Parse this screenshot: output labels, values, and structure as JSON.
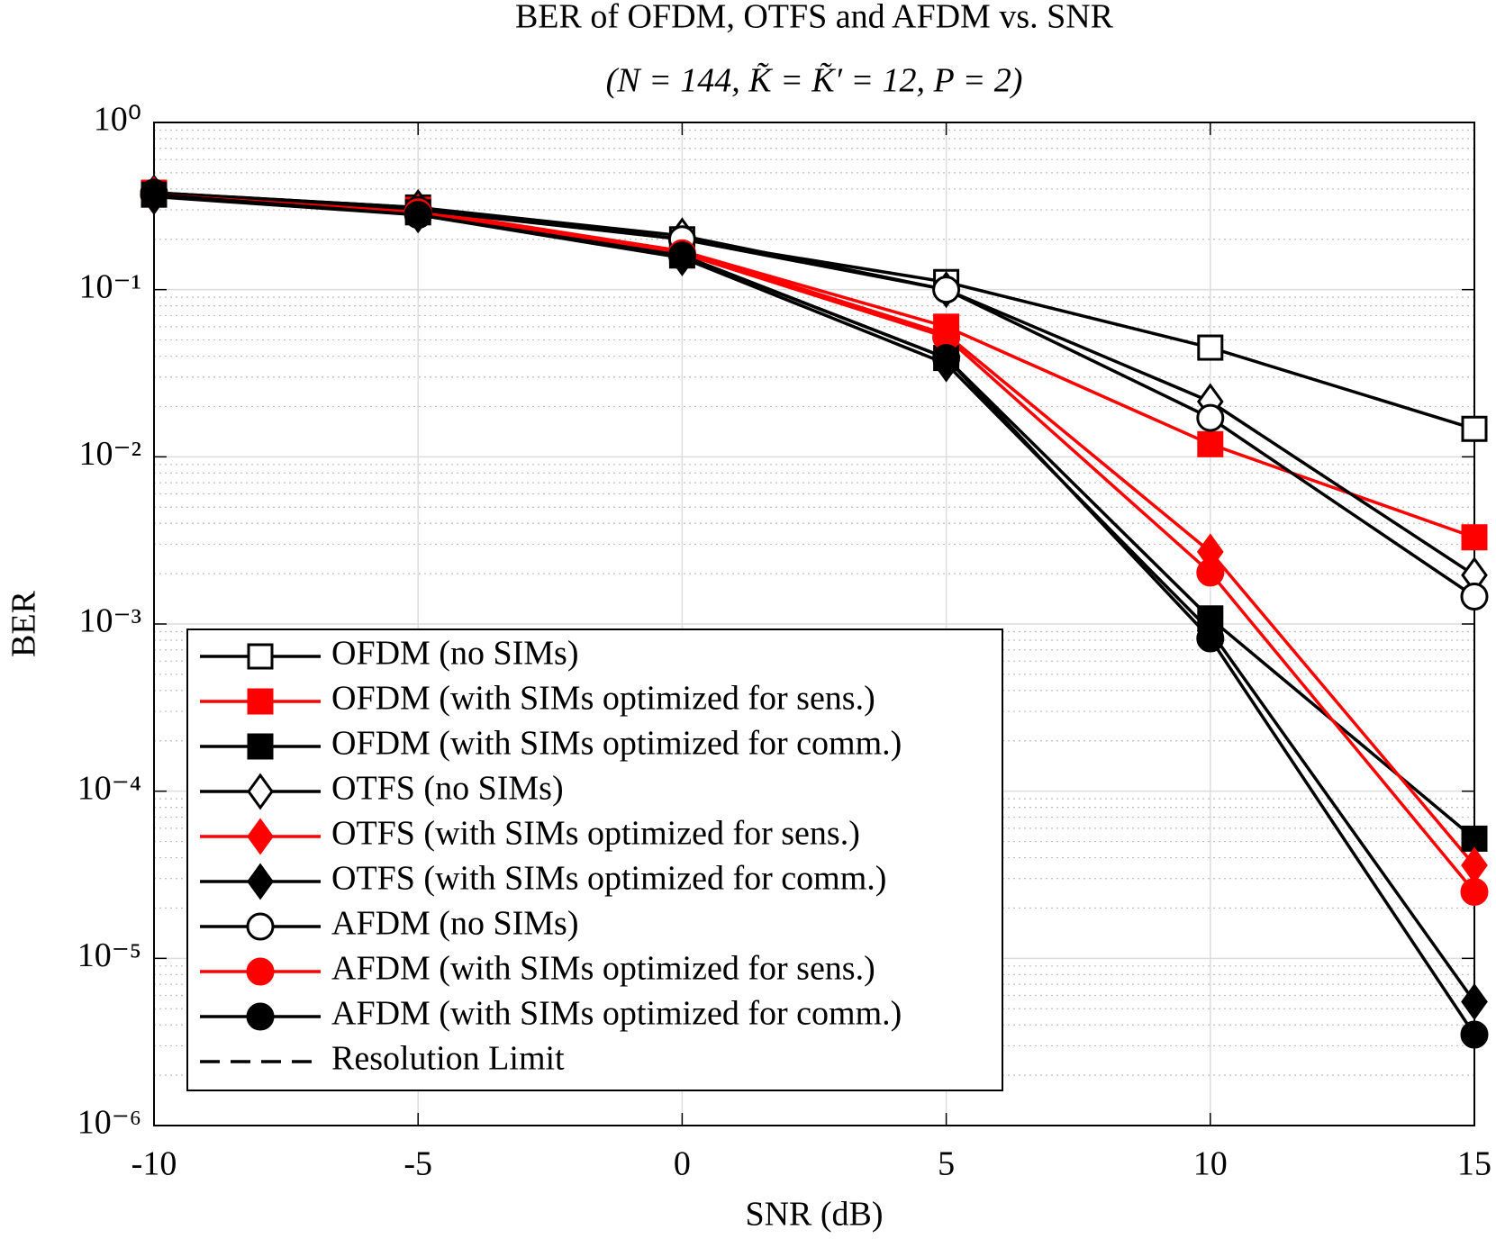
{
  "chart_data": {
    "type": "line",
    "title": "BER of OFDM, OTFS and AFDM vs. SNR",
    "subtitle": "(N = 144, K̃ = K̃′ = 12, P = 2)",
    "x_label": "SNR (dB)",
    "y_label": "BER",
    "x": [
      -10,
      -5,
      0,
      5,
      10,
      15
    ],
    "xlim": [
      -10,
      15
    ],
    "xticks": [
      -10,
      -5,
      0,
      5,
      10,
      15
    ],
    "ylim": [
      1e-06,
      1
    ],
    "yticks": [
      {
        "value": 1,
        "label": "10⁰"
      },
      {
        "value": 0.1,
        "label": "10⁻¹"
      },
      {
        "value": 0.01,
        "label": "10⁻²"
      },
      {
        "value": 0.001,
        "label": "10⁻³"
      },
      {
        "value": 0.0001,
        "label": "10⁻⁴"
      },
      {
        "value": 1e-05,
        "label": "10⁻⁵"
      },
      {
        "value": 1e-06,
        "label": "10⁻⁶"
      }
    ],
    "y_log": true,
    "grid": true,
    "minor_grid": true,
    "legend": "lower left",
    "series": [
      {
        "name": "OFDM (no SIMs)",
        "color": "#000000",
        "marker": "square",
        "filled": false,
        "values": [
          0.38,
          0.31,
          0.2,
          0.111,
          0.045,
          0.0147
        ]
      },
      {
        "name": "OFDM (with SIMs optimized for sens.)",
        "color": "#ff0000",
        "marker": "square",
        "filled": true,
        "values": [
          0.38,
          0.3,
          0.17,
          0.06,
          0.0119,
          0.0033
        ]
      },
      {
        "name": "OFDM (with SIMs optimized for comm.)",
        "color": "#000000",
        "marker": "square",
        "filled": true,
        "values": [
          0.37,
          0.29,
          0.16,
          0.039,
          0.00108,
          5.2e-05
        ]
      },
      {
        "name": "OTFS (no SIMs)",
        "color": "#000000",
        "marker": "diamond",
        "filled": false,
        "values": [
          0.38,
          0.31,
          0.21,
          0.1,
          0.0214,
          0.00196
        ]
      },
      {
        "name": "OTFS (with SIMs optimized for sens.)",
        "color": "#ff0000",
        "marker": "diamond",
        "filled": true,
        "values": [
          0.37,
          0.29,
          0.17,
          0.054,
          0.0027,
          3.6e-05
        ]
      },
      {
        "name": "OTFS (with SIMs optimized for comm.)",
        "color": "#000000",
        "marker": "diamond",
        "filled": true,
        "values": [
          0.36,
          0.28,
          0.155,
          0.036,
          0.00091,
          5.5e-06
        ]
      },
      {
        "name": "AFDM (no SIMs)",
        "color": "#000000",
        "marker": "circle",
        "filled": false,
        "values": [
          0.38,
          0.3,
          0.2,
          0.1,
          0.0171,
          0.00146
        ]
      },
      {
        "name": "AFDM (with SIMs optimized for sens.)",
        "color": "#ff0000",
        "marker": "circle",
        "filled": true,
        "values": [
          0.37,
          0.29,
          0.165,
          0.052,
          0.00203,
          2.5e-05
        ]
      },
      {
        "name": "AFDM (with SIMs optimized for comm.)",
        "color": "#000000",
        "marker": "circle",
        "filled": true,
        "values": [
          0.37,
          0.28,
          0.16,
          0.039,
          0.00082,
          3.5e-06
        ]
      },
      {
        "name": "Resolution Limit",
        "color": "#000000",
        "dashed": true,
        "values": [
          null,
          null,
          null,
          null,
          null,
          null
        ]
      }
    ]
  }
}
